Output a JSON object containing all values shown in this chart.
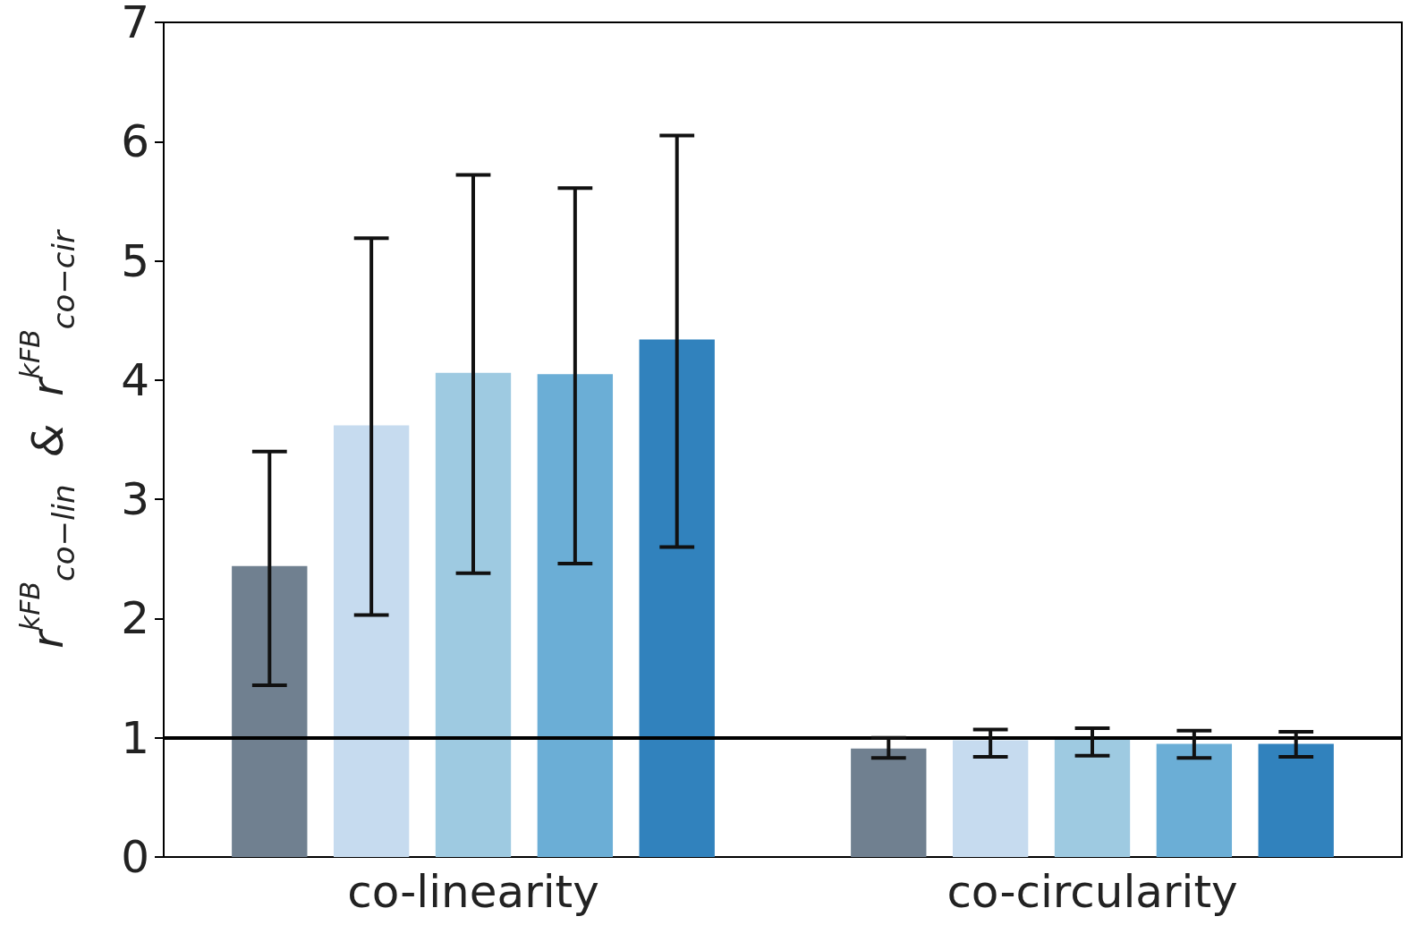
{
  "chart_data": {
    "type": "bar",
    "ylabel": "r$^{kFB}$$_{co−lin}$  &  r$^{kFB}$$_{co−cir}$",
    "categories": [
      "co-linearity",
      "co-circularity"
    ],
    "series": [
      {
        "color": "#708090",
        "values": [
          2.44,
          0.91
        ],
        "errors": [
          [
            1.44,
            3.4
          ],
          [
            0.83,
            1.0
          ]
        ]
      },
      {
        "color": "#c6dbef",
        "values": [
          3.62,
          0.98
        ],
        "errors": [
          [
            2.03,
            5.19
          ],
          [
            0.84,
            1.07
          ]
        ]
      },
      {
        "color": "#9ecae1",
        "values": [
          4.06,
          0.99
        ],
        "errors": [
          [
            2.38,
            5.72
          ],
          [
            0.85,
            1.08
          ]
        ]
      },
      {
        "color": "#6baed6",
        "values": [
          4.05,
          0.95
        ],
        "errors": [
          [
            2.46,
            5.61
          ],
          [
            0.83,
            1.06
          ]
        ]
      },
      {
        "color": "#3182bd",
        "values": [
          4.34,
          0.95
        ],
        "errors": [
          [
            2.6,
            6.05
          ],
          [
            0.84,
            1.05
          ]
        ]
      }
    ],
    "ylim": [
      0,
      7
    ],
    "yticks": [
      0,
      1,
      2,
      3,
      4,
      5,
      6,
      7
    ],
    "ref_lines": [
      {
        "axis": "y",
        "value": 1,
        "color": "#000000",
        "line_style": "solid"
      }
    ],
    "grid": false
  }
}
